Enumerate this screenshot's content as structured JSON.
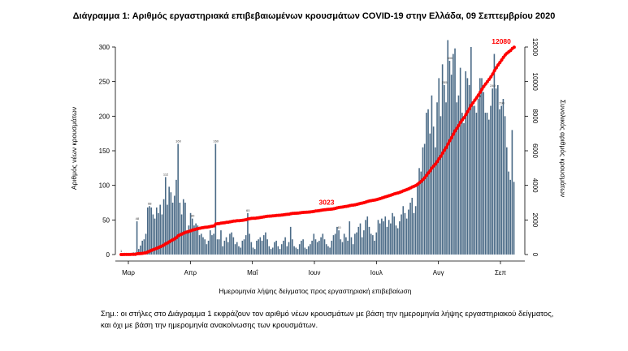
{
  "colors": {
    "bars": "#4a6a86",
    "cumulative": "#ff0000"
  },
  "chart_data": {
    "type": "bar+line",
    "title": "Διάγραμμα 1: Αριθμός εργαστηριακά επιβεβαιωμένων κρουσμάτων COVID-19 στην Ελλάδα, 09 Σεπτεμβρίου 2020",
    "xlabel": "Ημερομηνία λήψης δείγματος προς εργαστηριακή επιβεβαίωση",
    "ylabel_left": "Αριθμός νέων κρουσμάτων",
    "ylabel_right": "Συνολικός αριθμός κρουσμάτων",
    "ylim_left": [
      0,
      300
    ],
    "ylim_right": [
      0,
      12000
    ],
    "yticks_left": [
      "0",
      "50",
      "100",
      "150",
      "200",
      "250",
      "300"
    ],
    "yticks_right": [
      "0",
      "2000",
      "4000",
      "6000",
      "8000",
      "10000",
      "12000"
    ],
    "x_tick_labels": [
      "Μαρ",
      "Απρ",
      "Μαΐ",
      "Ιουν",
      "Ιουλ",
      "Αυγ",
      "Σεπ"
    ],
    "grid": false,
    "series": [
      {
        "name": "Αριθμός νέων κρουσμάτων",
        "kind": "bar",
        "values": [
          1,
          1,
          2,
          2,
          2,
          2,
          2,
          3,
          3,
          48,
          8,
          13,
          20,
          22,
          30,
          68,
          70,
          68,
          58,
          52,
          68,
          60,
          72,
          58,
          80,
          112,
          72,
          98,
          90,
          75,
          85,
          108,
          160,
          75,
          58,
          80,
          75,
          35,
          42,
          60,
          52,
          42,
          45,
          42,
          28,
          30,
          25,
          22,
          15,
          20,
          35,
          28,
          30,
          160,
          22,
          22,
          35,
          12,
          20,
          25,
          18,
          30,
          32,
          25,
          15,
          18,
          12,
          10,
          20,
          22,
          28,
          60,
          30,
          18,
          10,
          8,
          20,
          22,
          25,
          20,
          28,
          32,
          22,
          12,
          8,
          10,
          18,
          20,
          12,
          8,
          15,
          20,
          25,
          12,
          18,
          40,
          22,
          12,
          10,
          8,
          15,
          20,
          22,
          10,
          8,
          12,
          15,
          20,
          30,
          22,
          18,
          20,
          25,
          30,
          22,
          15,
          12,
          10,
          20,
          28,
          30,
          40,
          35,
          22,
          18,
          30,
          25,
          20,
          48,
          25,
          15,
          30,
          32,
          40,
          45,
          25,
          35,
          50,
          55,
          40,
          30,
          28,
          20,
          32,
          50,
          45,
          52,
          48,
          55,
          40,
          50,
          45,
          60,
          55,
          42,
          38,
          48,
          58,
          70,
          60,
          52,
          65,
          75,
          82,
          60,
          70,
          102,
          125,
          120,
          155,
          160,
          205,
          210,
          175,
          230,
          185,
          155,
          220,
          255,
          200,
          275,
          245,
          220,
          310,
          280,
          260,
          290,
          298,
          220,
          230,
          270,
          205,
          190,
          265,
          255,
          245,
          300,
          215,
          215,
          205,
          225,
          255,
          255,
          235,
          205,
          205,
          195,
          215,
          240,
          290,
          240,
          245,
          210,
          215,
          225,
          200,
          155,
          120,
          108,
          180,
          105
        ]
      },
      {
        "name": "Συνολικός αριθμός κρουσμάτων",
        "kind": "cumulative-line",
        "labels": [
          "3023",
          "12080"
        ]
      }
    ],
    "bar_value_labels": [
      "1",
      "48",
      "68",
      "112",
      "160",
      "80",
      "60",
      "160",
      "40",
      "300",
      "255",
      "205",
      "240",
      "290"
    ]
  },
  "footnote": "Σημ.: οι στήλες στο Διάγραμμα 1 εκφράζουν τον αριθμό νέων κρουσμάτων με βάση την ημερομηνία λήψης εργαστηριακού δείγματος, και όχι με βάση την ημερομηνία ανακοίνωσης των κρουσμάτων."
}
